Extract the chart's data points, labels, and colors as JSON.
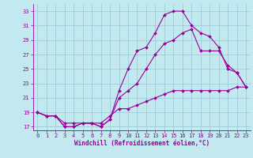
{
  "xlabel": "Windchill (Refroidissement éolien,°C)",
  "bg_color": "#c2e8f0",
  "grid_color": "#a0ccd8",
  "line_color": "#990099",
  "xlim": [
    -0.5,
    23.5
  ],
  "ylim": [
    16.5,
    34.0
  ],
  "xticks": [
    0,
    1,
    2,
    3,
    4,
    5,
    6,
    7,
    8,
    9,
    10,
    11,
    12,
    13,
    14,
    15,
    16,
    17,
    18,
    19,
    20,
    21,
    22,
    23
  ],
  "yticks": [
    17,
    19,
    21,
    23,
    25,
    27,
    29,
    31,
    33
  ],
  "curve1_x": [
    0,
    1,
    2,
    3,
    4,
    5,
    6,
    7,
    8,
    9,
    10,
    11,
    12,
    13,
    14,
    15,
    16,
    17,
    18,
    19,
    20,
    21,
    22,
    23
  ],
  "curve1_y": [
    19,
    18.5,
    18.5,
    17,
    17,
    17.5,
    17.5,
    17,
    18,
    22,
    25,
    27.5,
    28,
    30,
    32.5,
    33,
    33,
    31,
    30,
    29.5,
    28,
    25,
    24.5,
    22.5
  ],
  "curve2_x": [
    0,
    1,
    2,
    3,
    4,
    5,
    6,
    7,
    8,
    9,
    10,
    11,
    12,
    13,
    14,
    15,
    16,
    17,
    18,
    19,
    20,
    21,
    22,
    23
  ],
  "curve2_y": [
    19,
    18.5,
    18.5,
    17,
    17,
    17.5,
    17.5,
    17,
    18,
    21,
    22,
    23,
    25,
    27,
    28.5,
    29,
    30,
    30.5,
    27.5,
    27.5,
    27.5,
    25.5,
    24.5,
    22.5
  ],
  "curve3_x": [
    0,
    1,
    2,
    3,
    4,
    5,
    6,
    7,
    8,
    9,
    10,
    11,
    12,
    13,
    14,
    15,
    16,
    17,
    18,
    19,
    20,
    21,
    22,
    23
  ],
  "curve3_y": [
    19,
    18.5,
    18.5,
    17.5,
    17.5,
    17.5,
    17.5,
    17.5,
    18.5,
    19.5,
    19.5,
    20,
    20.5,
    21,
    21.5,
    22,
    22,
    22,
    22,
    22,
    22,
    22,
    22.5,
    22.5
  ],
  "tick_fontsize": 5.0,
  "xlabel_fontsize": 5.5,
  "lw": 0.8,
  "ms": 2.0
}
